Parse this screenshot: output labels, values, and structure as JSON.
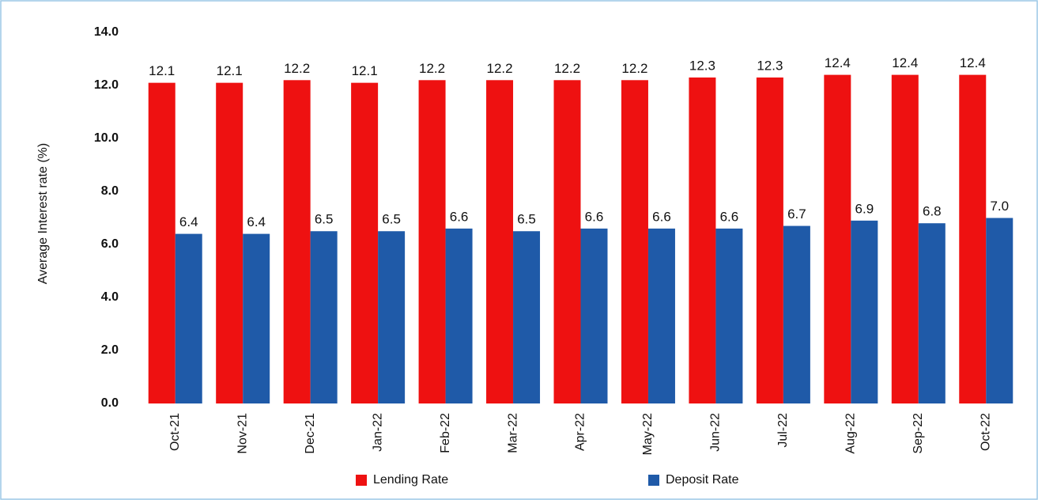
{
  "chart_data": {
    "type": "bar",
    "y_label": "Average Interest rate (%)",
    "categories": [
      "Oct-21",
      "Nov-21",
      "Dec-21",
      "Jan-22",
      "Feb-22",
      "Mar-22",
      "Apr-22",
      "May-22",
      "Jun-22",
      "Jul-22",
      "Aug-22",
      "Sep-22",
      "Oct-22"
    ],
    "series": [
      {
        "name": "Lending Rate",
        "color": "#ee1111",
        "values": [
          12.1,
          12.1,
          12.2,
          12.1,
          12.2,
          12.2,
          12.2,
          12.2,
          12.3,
          12.3,
          12.4,
          12.4,
          12.4
        ],
        "value_labels": [
          "12.1",
          "12.1",
          "12.2",
          "12.1",
          "12.2",
          "12.2",
          "12.2",
          "12.2",
          "12.3",
          "12.3",
          "12.4",
          "12.4",
          "12.4"
        ]
      },
      {
        "name": "Deposit Rate",
        "color": "#1f5aa8",
        "values": [
          6.4,
          6.4,
          6.5,
          6.5,
          6.6,
          6.5,
          6.6,
          6.6,
          6.6,
          6.7,
          6.9,
          6.8,
          7.0
        ],
        "value_labels": [
          "6.4",
          "6.4",
          "6.5",
          "6.5",
          "6.6",
          "6.5",
          "6.6",
          "6.6",
          "6.6",
          "6.7",
          "6.9",
          "6.8",
          "7.0"
        ]
      }
    ],
    "ylim": [
      0,
      14
    ],
    "yticks": [
      {
        "value": 0,
        "label": "0.0"
      },
      {
        "value": 2,
        "label": "2.0"
      },
      {
        "value": 4,
        "label": "4.0"
      },
      {
        "value": 6,
        "label": "6.0"
      },
      {
        "value": 8,
        "label": "8.0"
      },
      {
        "value": 10,
        "label": "10.0"
      },
      {
        "value": 12,
        "label": "12.0"
      },
      {
        "value": 14,
        "label": "14.0"
      }
    ],
    "grid": false,
    "legend": "bottom"
  }
}
